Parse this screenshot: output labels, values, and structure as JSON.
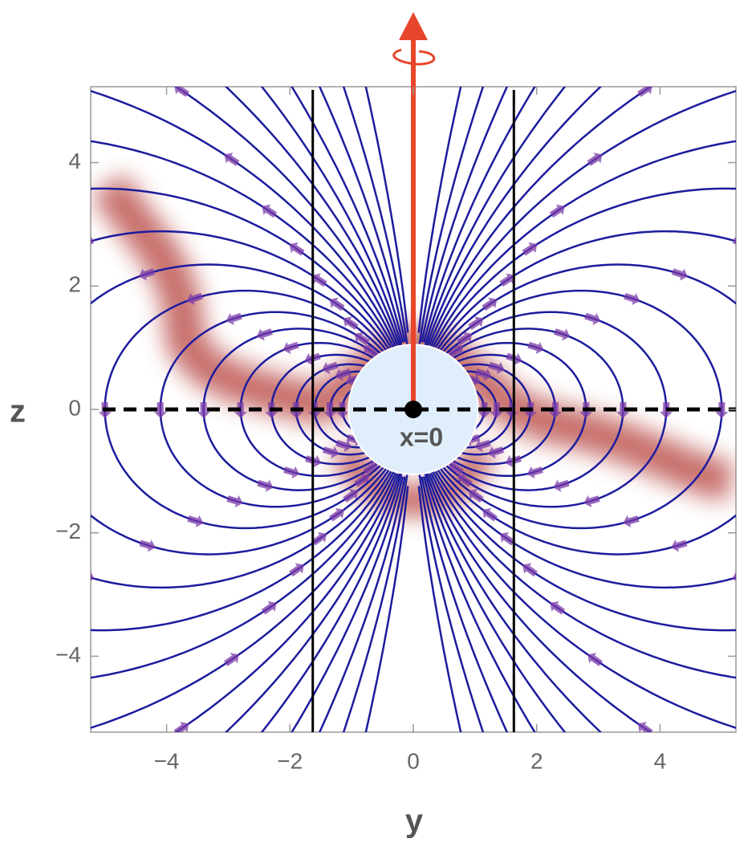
{
  "chart_data": {
    "type": "stream",
    "xlabel": "y",
    "ylabel": "z",
    "annotation": "x=0",
    "xlim": [
      -5.23,
      5.23
    ],
    "ylim": [
      -5.23,
      5.23
    ],
    "xticks": [
      {
        "value": -4,
        "label": "−4"
      },
      {
        "value": -2,
        "label": "−2"
      },
      0,
      2,
      4
    ],
    "yticks": [
      {
        "value": -4,
        "label": "−4"
      },
      {
        "value": -2,
        "label": "−2"
      },
      0,
      2,
      4
    ],
    "vlines": [
      -1.63,
      1.63
    ],
    "hline": 0,
    "circle_radius": 1.05,
    "line_color": "#1c1c9e",
    "arrow_color": "#7a3aa8"
  }
}
